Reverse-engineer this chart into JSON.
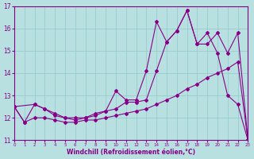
{
  "line1_x": [
    0,
    1,
    2,
    3,
    4,
    5,
    6,
    7,
    8,
    9,
    10,
    11,
    12,
    13,
    14,
    15,
    16,
    17,
    18,
    19,
    20,
    21,
    22,
    23
  ],
  "line1_y": [
    12.5,
    11.8,
    12.6,
    12.4,
    12.1,
    12.0,
    11.9,
    12.0,
    12.1,
    12.3,
    13.2,
    12.8,
    12.8,
    14.1,
    16.3,
    15.4,
    15.9,
    16.8,
    15.3,
    15.8,
    14.9,
    13.0,
    12.6,
    11.0
  ],
  "line2_x": [
    0,
    1,
    2,
    3,
    4,
    5,
    6,
    7,
    8,
    9,
    10,
    11,
    12,
    13,
    14,
    15,
    16,
    17,
    18,
    19,
    20,
    21,
    22,
    23
  ],
  "line2_y": [
    12.5,
    11.8,
    12.0,
    12.0,
    11.9,
    11.8,
    11.8,
    11.9,
    11.9,
    12.0,
    12.1,
    12.2,
    12.3,
    12.4,
    12.6,
    12.8,
    13.0,
    13.3,
    13.5,
    13.8,
    14.0,
    14.2,
    14.5,
    11.0
  ],
  "line3_x": [
    0,
    2,
    3,
    4,
    5,
    6,
    7,
    8,
    9,
    10,
    11,
    12,
    13,
    14,
    15,
    16,
    17,
    18,
    19,
    20,
    21,
    22,
    23
  ],
  "line3_y": [
    12.5,
    12.6,
    12.4,
    12.2,
    12.0,
    12.0,
    12.0,
    12.2,
    12.3,
    12.4,
    12.7,
    12.7,
    12.8,
    14.1,
    15.4,
    15.9,
    16.8,
    15.3,
    15.3,
    15.8,
    14.9,
    15.8,
    11.0
  ],
  "color": "#880088",
  "bg_color": "#b8e0e0",
  "grid_color": "#90c8c8",
  "xlabel": "Windchill (Refroidissement éolien,°C)",
  "xlim": [
    0,
    23
  ],
  "ylim": [
    11,
    17
  ],
  "yticks": [
    11,
    12,
    13,
    14,
    15,
    16,
    17
  ],
  "xticks": [
    0,
    1,
    2,
    3,
    4,
    5,
    6,
    7,
    8,
    9,
    10,
    11,
    12,
    13,
    14,
    15,
    16,
    17,
    18,
    19,
    20,
    21,
    22,
    23
  ]
}
